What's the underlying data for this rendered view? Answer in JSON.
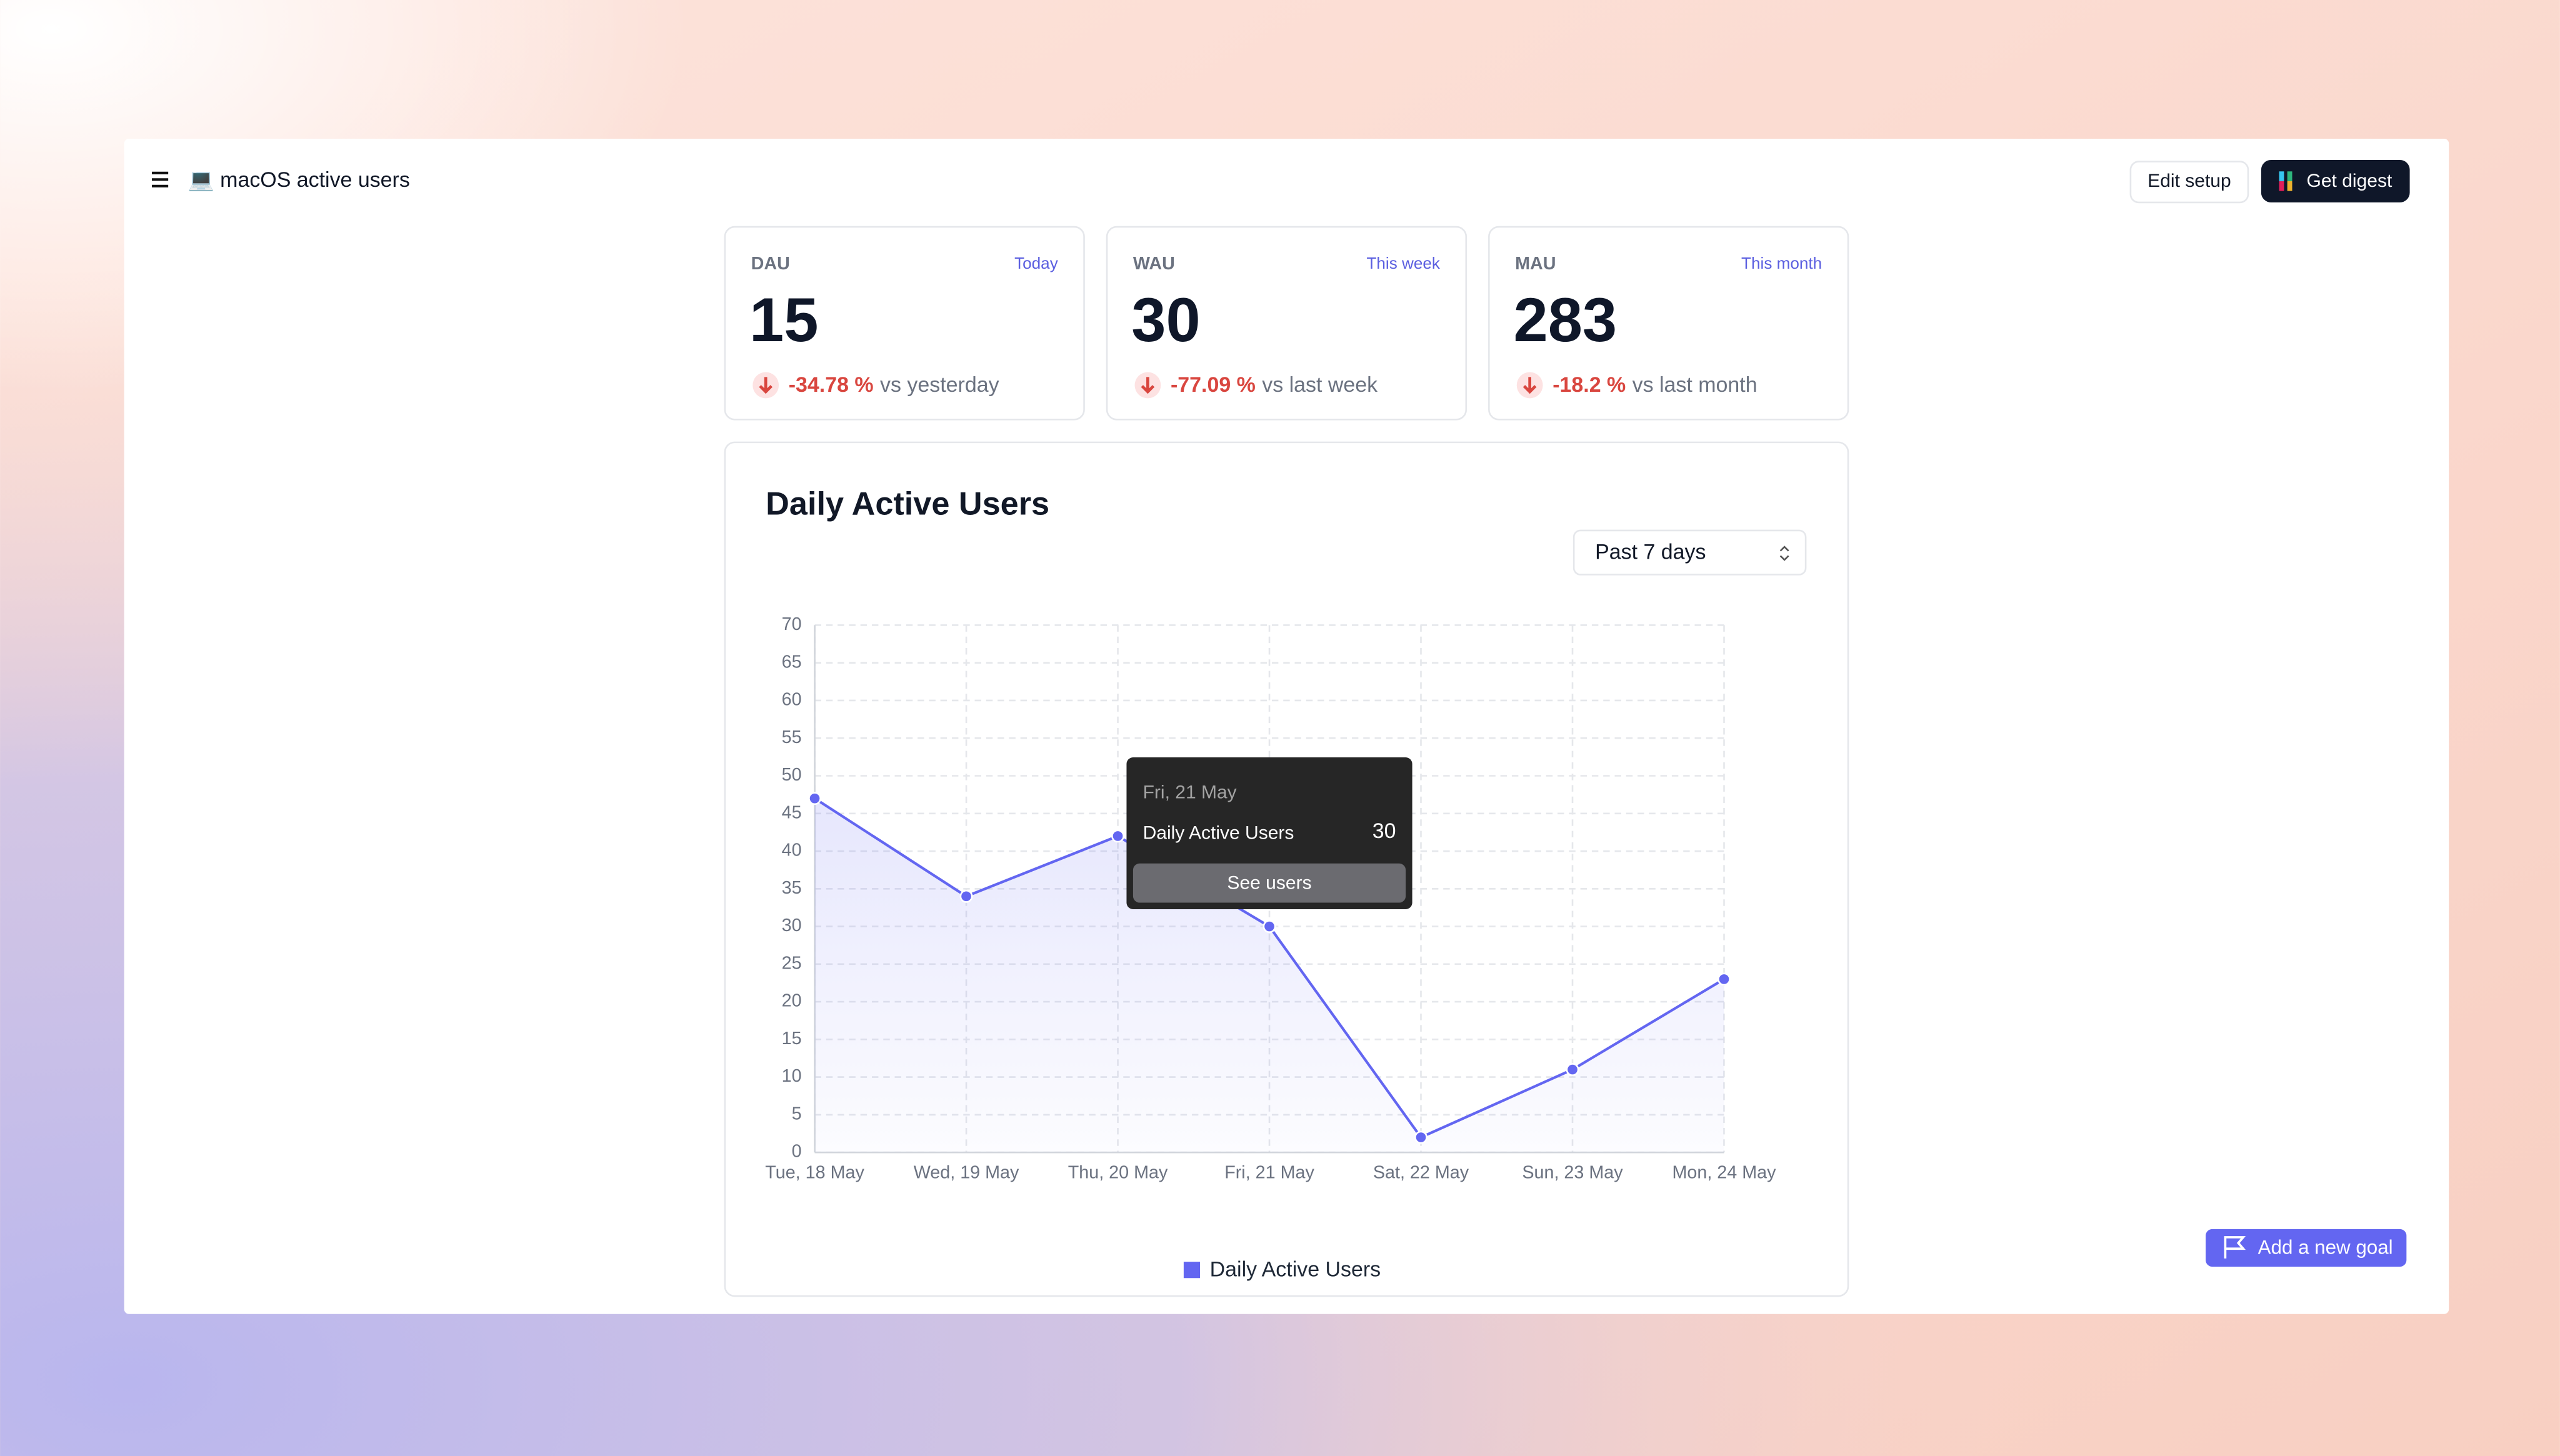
{
  "header": {
    "title": "💻 macOS active users",
    "buttons": [
      "Edit setup",
      "Get digest"
    ]
  },
  "cards": [
    {
      "label": "DAU",
      "period": "Today",
      "value": 15,
      "change": "-34.78 %",
      "comparison": "vs yesterday"
    },
    {
      "label": "WAU",
      "period": "This week",
      "value": 30,
      "change": "-77.09 %",
      "comparison": "vs last week"
    },
    {
      "label": "MAU",
      "period": "This month",
      "value": 283,
      "change": "-18.2 %",
      "comparison": "vs last month"
    }
  ],
  "chart_data": {
    "type": "line",
    "title": "Daily Active Users",
    "range_selector": "Past 7 days",
    "categories": [
      "Tue, 18 May",
      "Wed, 19 May",
      "Thu, 20 May",
      "Fri, 21 May",
      "Sat, 22 May",
      "Sun, 23 May",
      "Mon, 24 May"
    ],
    "series": [
      {
        "name": "Daily Active Users",
        "color": "#6366f1",
        "values": [
          47,
          34,
          42,
          30,
          2,
          11,
          23
        ]
      }
    ],
    "ylim": [
      0,
      70
    ],
    "yticks": [
      0,
      5,
      10,
      15,
      20,
      25,
      30,
      35,
      40,
      45,
      50,
      55,
      60,
      65,
      70
    ],
    "grid": true,
    "tooltip": {
      "date": "Fri, 21 May",
      "label": "Daily Active Users",
      "value": 30,
      "action": "See users"
    }
  },
  "goal_button": "Add a new goal"
}
